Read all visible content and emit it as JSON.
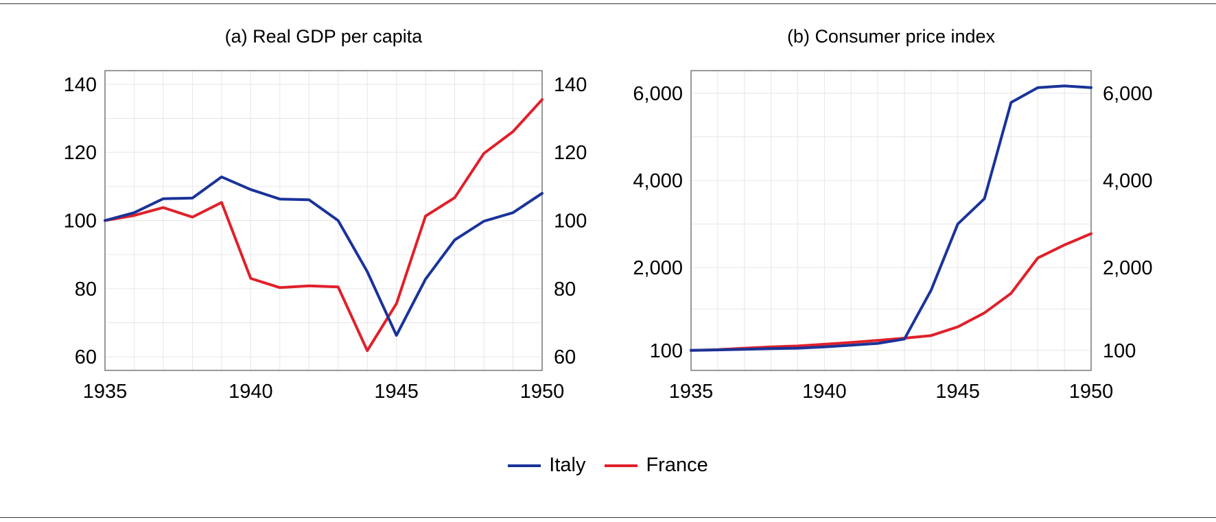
{
  "colors": {
    "italy": "#1a3399",
    "france": "#e0202a",
    "grid": "#e6e6e6",
    "frame": "#555555"
  },
  "legend": [
    {
      "name": "Italy",
      "color": "#1a3399"
    },
    {
      "name": "France",
      "color": "#e0202a"
    }
  ],
  "chart_data": [
    {
      "type": "line",
      "title": "(a) Real GDP per capita",
      "xlabel": "",
      "ylabel": "",
      "xlim": [
        1935,
        1950
      ],
      "ylim": [
        56,
        144
      ],
      "x_ticks": [
        1935,
        1940,
        1945,
        1950
      ],
      "y_ticks": [
        60,
        80,
        100,
        120,
        140
      ],
      "y_tick_labels": [
        "60",
        "80",
        "100",
        "120",
        "140"
      ],
      "dual_y_axis": true,
      "grid": true,
      "x": [
        1935,
        1936,
        1937,
        1938,
        1939,
        1940,
        1941,
        1942,
        1943,
        1944,
        1945,
        1946,
        1947,
        1948,
        1949,
        1950
      ],
      "series": [
        {
          "name": "Italy",
          "color": "#1a3399",
          "values": [
            100,
            102.3,
            106.4,
            106.6,
            112.8,
            109.1,
            106.3,
            106.1,
            100.0,
            85.0,
            66.3,
            82.8,
            94.3,
            99.8,
            102.3,
            108.0
          ]
        },
        {
          "name": "France",
          "color": "#e0202a",
          "values": [
            100,
            101.5,
            103.8,
            101.0,
            105.3,
            83.0,
            80.3,
            80.8,
            80.5,
            61.8,
            75.6,
            101.3,
            106.7,
            119.7,
            126.1,
            135.5
          ]
        }
      ]
    },
    {
      "type": "line",
      "title": "(b) Consumer price index",
      "xlabel": "",
      "ylabel": "",
      "xlim": [
        1935,
        1950
      ],
      "ylim": [
        -360,
        6520
      ],
      "x_ticks": [
        1935,
        1940,
        1945,
        1950
      ],
      "y_ticks": [
        100,
        2000,
        4000,
        6000
      ],
      "y_tick_labels": [
        "100",
        "2,000",
        "4,000",
        "6,000"
      ],
      "dual_y_axis": true,
      "grid": true,
      "x": [
        1935,
        1936,
        1937,
        1938,
        1939,
        1940,
        1941,
        1942,
        1943,
        1944,
        1945,
        1946,
        1947,
        1948,
        1949,
        1950
      ],
      "series": [
        {
          "name": "Italy",
          "color": "#1a3399",
          "values": [
            100,
            110,
            125,
            140,
            150,
            180,
            220,
            260,
            360,
            1480,
            3000,
            3580,
            5790,
            6130,
            6170,
            6130
          ]
        },
        {
          "name": "France",
          "color": "#e0202a",
          "values": [
            100,
            115,
            150,
            180,
            200,
            240,
            280,
            330,
            380,
            440,
            640,
            960,
            1410,
            2220,
            2520,
            2780
          ]
        }
      ]
    }
  ]
}
